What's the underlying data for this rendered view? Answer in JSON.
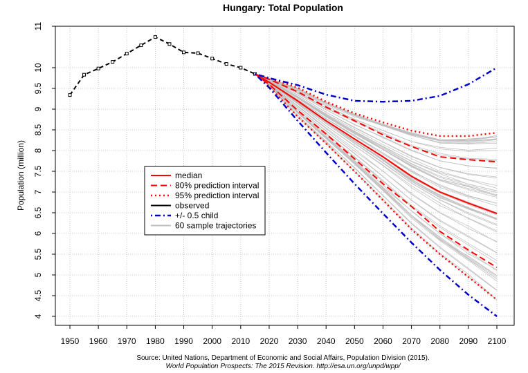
{
  "chart_data": {
    "type": "line",
    "title": "Hungary: Total Population",
    "xlabel": "",
    "ylabel": "Population (million)",
    "xlim": [
      1950,
      2100
    ],
    "ylim": [
      4,
      11
    ],
    "x_ticks": [
      1950,
      1960,
      1970,
      1980,
      1990,
      2000,
      2010,
      2020,
      2030,
      2040,
      2050,
      2060,
      2070,
      2080,
      2090,
      2100
    ],
    "y_ticks": [
      "4",
      "4.5",
      "5",
      "5.5",
      "6",
      "6.5",
      "7",
      "7.5",
      "8",
      "8.5",
      "9",
      "9.5",
      "10",
      "11"
    ],
    "grid": true,
    "legend_position": "center-left",
    "legend": [
      {
        "label": "median",
        "color": "#ff0000",
        "style": "solid"
      },
      {
        "label": "80% prediction interval",
        "color": "#ff0000",
        "style": "dashed"
      },
      {
        "label": "95% prediction interval",
        "color": "#ff0000",
        "style": "dotted"
      },
      {
        "label": "observed",
        "color": "#000000",
        "style": "solid"
      },
      {
        "label": "+/- 0.5 child",
        "color": "#0000cc",
        "style": "dashdot"
      },
      {
        "label": "60 sample trajectories",
        "color": "#bebebe",
        "style": "solid"
      }
    ],
    "series": [
      {
        "name": "observed",
        "color": "#000000",
        "style": "dashed-points",
        "x": [
          1950,
          1955,
          1960,
          1965,
          1970,
          1975,
          1980,
          1985,
          1990,
          1995,
          2000,
          2005,
          2010,
          2015
        ],
        "y": [
          9.34,
          9.83,
          9.98,
          10.14,
          10.34,
          10.54,
          10.74,
          10.57,
          10.37,
          10.35,
          10.22,
          10.09,
          10.0,
          9.85
        ]
      },
      {
        "name": "median",
        "color": "#ff0000",
        "style": "solid",
        "x": [
          2015,
          2020,
          2030,
          2040,
          2050,
          2060,
          2070,
          2080,
          2090,
          2100
        ],
        "y": [
          9.85,
          9.65,
          9.2,
          8.72,
          8.28,
          7.85,
          7.38,
          7.0,
          6.73,
          6.48
        ]
      },
      {
        "name": "80% prediction interval",
        "color": "#ff0000",
        "style": "dashed",
        "x": [
          2015,
          2020,
          2030,
          2040,
          2050,
          2060,
          2070,
          2080,
          2090,
          2100
        ],
        "y": [
          9.85,
          9.72,
          9.42,
          9.05,
          8.72,
          8.38,
          8.1,
          7.85,
          7.78,
          7.73
        ]
      },
      {
        "name": "80% prediction interval",
        "color": "#ff0000",
        "style": "dashed",
        "x": [
          2015,
          2020,
          2030,
          2040,
          2050,
          2060,
          2070,
          2080,
          2090,
          2100
        ],
        "y": [
          9.85,
          9.6,
          8.97,
          8.4,
          7.8,
          7.2,
          6.65,
          6.05,
          5.6,
          5.18
        ]
      },
      {
        "name": "95% prediction interval",
        "color": "#ff0000",
        "style": "dotted",
        "x": [
          2015,
          2020,
          2030,
          2040,
          2050,
          2060,
          2070,
          2080,
          2090,
          2100
        ],
        "y": [
          9.85,
          9.75,
          9.52,
          9.18,
          8.9,
          8.68,
          8.48,
          8.35,
          8.35,
          8.43
        ]
      },
      {
        "name": "95% prediction interval",
        "color": "#ff0000",
        "style": "dotted",
        "x": [
          2015,
          2020,
          2030,
          2040,
          2050,
          2060,
          2070,
          2080,
          2090,
          2100
        ],
        "y": [
          9.85,
          9.55,
          8.82,
          8.17,
          7.5,
          6.8,
          6.1,
          5.5,
          4.95,
          4.4
        ]
      },
      {
        "name": "+/- 0.5 child",
        "color": "#0000cc",
        "style": "dashdot",
        "x": [
          2015,
          2020,
          2030,
          2040,
          2050,
          2060,
          2070,
          2080,
          2090,
          2100
        ],
        "y": [
          9.85,
          9.75,
          9.58,
          9.35,
          9.2,
          9.18,
          9.2,
          9.32,
          9.6,
          10.0
        ]
      },
      {
        "name": "+/- 0.5 child",
        "color": "#0000cc",
        "style": "dashdot",
        "x": [
          2015,
          2020,
          2030,
          2040,
          2050,
          2060,
          2070,
          2080,
          2090,
          2100
        ],
        "y": [
          9.85,
          9.52,
          8.72,
          7.95,
          7.2,
          6.48,
          5.78,
          5.12,
          4.52,
          4.0
        ]
      }
    ],
    "source_lines": [
      "Source: United Nations, Department of Economic and Social Affairs, Population Division (2015).",
      "World Population Prospects: The 2015 Revision. http://esa.un.org/unpd/wpp/"
    ]
  }
}
